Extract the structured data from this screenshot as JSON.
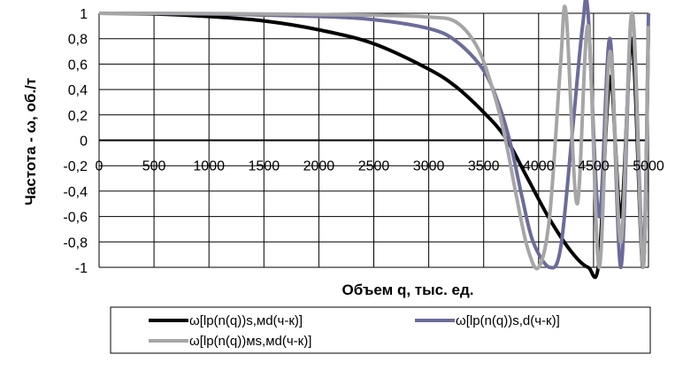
{
  "chart_data": {
    "type": "line",
    "title": "",
    "xlabel": "Объем q, тыс. ед.",
    "ylabel": "Частота - ω, об./т",
    "xlim": [
      0,
      5000
    ],
    "ylim": [
      -1,
      1
    ],
    "x_ticks": [
      0,
      500,
      1000,
      1500,
      2000,
      2500,
      3000,
      3500,
      4000,
      4500,
      5000
    ],
    "y_ticks": [
      1,
      0.8,
      0.6,
      0.4,
      0.2,
      0,
      -0.2,
      -0.4,
      -0.6,
      -0.8,
      -1
    ],
    "y_tick_labels": [
      "1",
      "0,8",
      "0,6",
      "0,4",
      "0,2",
      "0",
      "-0,2",
      "-0,4",
      "-0,6",
      "-0,8",
      "-1"
    ],
    "grid": true,
    "legend_position": "bottom",
    "series": [
      {
        "name": "ω[lp(n(q))s,мd(ч-к)]",
        "color": "#000000",
        "points": [
          [
            0,
            1
          ],
          [
            500,
            0.995
          ],
          [
            1000,
            0.975
          ],
          [
            1500,
            0.94
          ],
          [
            2000,
            0.87
          ],
          [
            2500,
            0.76
          ],
          [
            3000,
            0.56
          ],
          [
            3250,
            0.42
          ],
          [
            3500,
            0.22
          ],
          [
            3700,
            0.02
          ],
          [
            3900,
            -0.3
          ],
          [
            4100,
            -0.62
          ],
          [
            4300,
            -0.88
          ],
          [
            4450,
            -1
          ],
          [
            4550,
            -0.95
          ],
          [
            4650,
            0.5
          ],
          [
            4750,
            -0.6
          ],
          [
            4850,
            0.8
          ],
          [
            4950,
            -1
          ],
          [
            5000,
            0.9
          ]
        ]
      },
      {
        "name": "ω[lp(n(q))s,d(ч-к)]",
        "color": "#6b6b9e",
        "points": [
          [
            0,
            1
          ],
          [
            1000,
            0.995
          ],
          [
            2000,
            0.975
          ],
          [
            2500,
            0.95
          ],
          [
            3000,
            0.88
          ],
          [
            3250,
            0.78
          ],
          [
            3500,
            0.55
          ],
          [
            3650,
            0.25
          ],
          [
            3750,
            -0.05
          ],
          [
            3850,
            -0.45
          ],
          [
            3950,
            -0.8
          ],
          [
            4100,
            -1
          ],
          [
            4200,
            -0.85
          ],
          [
            4300,
            0
          ],
          [
            4400,
            0.9
          ],
          [
            4450,
            1
          ],
          [
            4550,
            -0.6
          ],
          [
            4650,
            0.8
          ],
          [
            4750,
            -1
          ],
          [
            4850,
            1
          ],
          [
            4950,
            -0.9
          ],
          [
            5000,
            1
          ]
        ]
      },
      {
        "name": "ω[lp(n(q))мs,мd(ч-к)]",
        "color": "#a6a6a6",
        "points": [
          [
            0,
            1
          ],
          [
            1000,
            0.998
          ],
          [
            2000,
            0.99
          ],
          [
            2500,
            0.985
          ],
          [
            3000,
            0.97
          ],
          [
            3250,
            0.93
          ],
          [
            3450,
            0.72
          ],
          [
            3600,
            0.35
          ],
          [
            3700,
            0.0
          ],
          [
            3800,
            -0.45
          ],
          [
            3900,
            -0.85
          ],
          [
            4000,
            -1
          ],
          [
            4100,
            -0.6
          ],
          [
            4200,
            0.6
          ],
          [
            4250,
            1
          ],
          [
            4350,
            -0.5
          ],
          [
            4450,
            0.9
          ],
          [
            4550,
            -1
          ],
          [
            4650,
            0.7
          ],
          [
            4750,
            -0.8
          ],
          [
            4850,
            1
          ],
          [
            4950,
            -1
          ],
          [
            5000,
            0.9
          ]
        ]
      }
    ]
  }
}
